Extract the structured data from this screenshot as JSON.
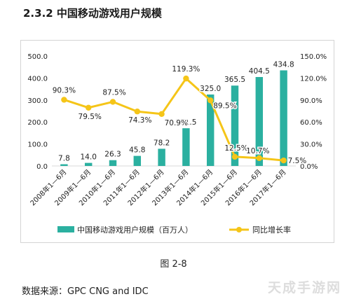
{
  "heading": "2.3.2  中国移动游戏用户规模",
  "caption": "图 2-8",
  "source": "数据来源：GPC CNG and IDC",
  "watermark": "天成手游网",
  "colors": {
    "bar": "#2bb0a0",
    "line": "#f5c518",
    "grid": "#d9d9d9",
    "text": "#222222"
  },
  "chart_data": {
    "type": "bar",
    "title": "",
    "xlabel": "",
    "ylabel": "",
    "categories": [
      "2008年1—6月",
      "2009年1—6月",
      "2010年1—6月",
      "2011年1—6月",
      "2012年1—6月",
      "2013年1—6月",
      "2014年1—6月",
      "2015年1—6月",
      "2016年1—6月",
      "2017年1—6月"
    ],
    "series": [
      {
        "name": "中国移动游戏用户规模（百万人）",
        "type": "bar",
        "axis": "left",
        "values": [
          7.8,
          14.0,
          26.3,
          45.8,
          78.2,
          171.5,
          325.0,
          365.5,
          404.5,
          434.8
        ],
        "labels": [
          "7.8",
          "14.0",
          "26.3",
          "45.8",
          "78.2",
          "171.5",
          "325.0",
          "365.5",
          "404.5",
          "434.8"
        ]
      },
      {
        "name": "同比增长率",
        "type": "line",
        "axis": "right",
        "values": [
          90.3,
          79.5,
          87.5,
          74.3,
          70.9,
          119.3,
          89.5,
          12.5,
          10.7,
          7.5
        ],
        "labels": [
          "90.3%",
          "79.5%",
          "87.5%",
          "74.3%",
          "70.9%",
          "119.3%",
          "89.5%",
          "12.5%",
          "10.7%",
          "7.5%"
        ]
      }
    ],
    "ylim": [
      0,
      500
    ],
    "y_ticks": [
      "0.0",
      "100.0",
      "200.0",
      "300.0",
      "400.0",
      "500.0"
    ],
    "y2lim": [
      0,
      150
    ],
    "y2_ticks": [
      "0.0%",
      "30.0%",
      "60.0%",
      "90.0%",
      "120.0%",
      "150.0%"
    ],
    "grid": false,
    "legend": "bottom"
  }
}
